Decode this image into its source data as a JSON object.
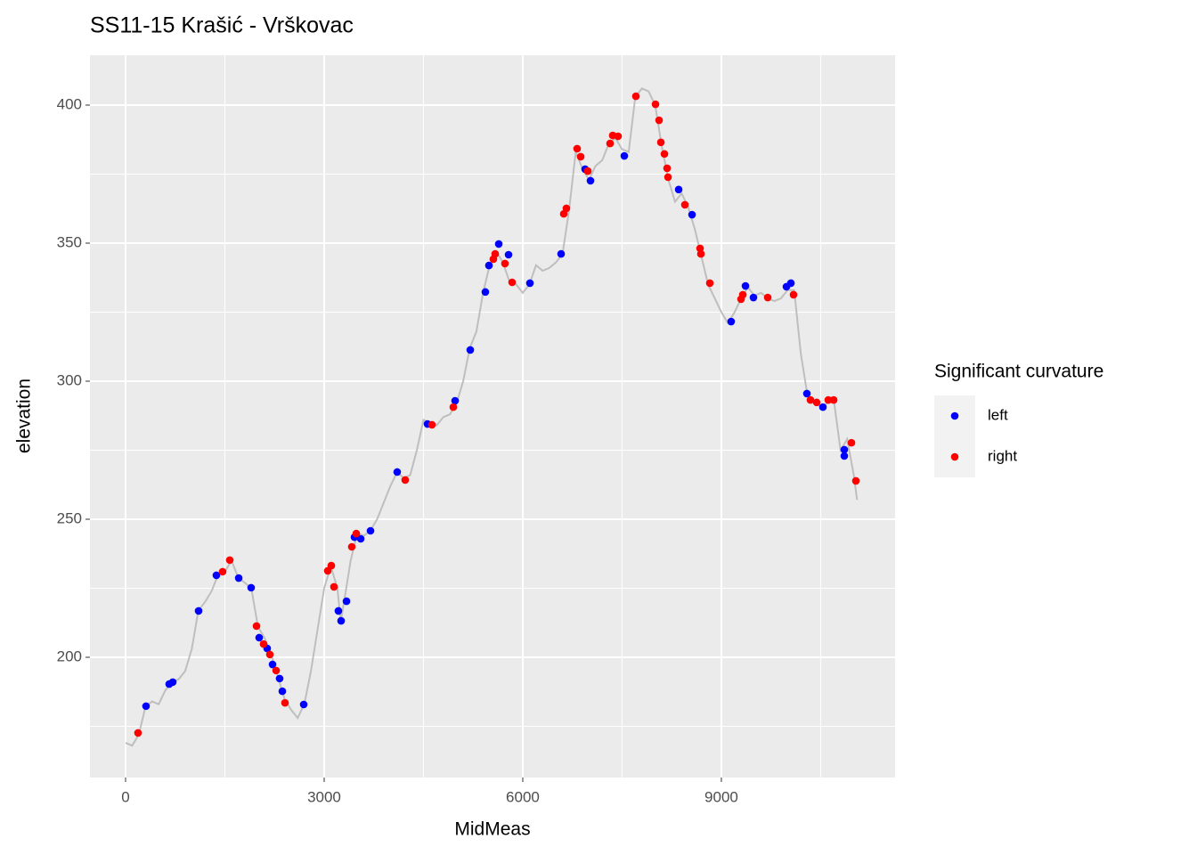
{
  "chart_data": {
    "type": "scatter",
    "title": "SS11-15 Krašić - Vrškovac",
    "x_label": "MidMeas",
    "y_label": "elevation",
    "legend_title": "Significant curvature",
    "legend_position": "right",
    "grid": true,
    "xlim": [
      -538,
      11624
    ],
    "ylim": [
      156.45,
      418.06
    ],
    "xticks": [
      0,
      3000,
      6000,
      9000
    ],
    "yticks": [
      200,
      250,
      300,
      350,
      400
    ],
    "xminor": [
      1500,
      4500,
      7500,
      10500
    ],
    "yminor": [
      175,
      225,
      275,
      325,
      375
    ],
    "profile": {
      "color": "#bebebe",
      "x": [
        0,
        100,
        200,
        300,
        400,
        500,
        600,
        700,
        800,
        900,
        1000,
        1100,
        1200,
        1300,
        1400,
        1500,
        1600,
        1700,
        1800,
        1900,
        2000,
        2100,
        2200,
        2300,
        2400,
        2500,
        2600,
        2700,
        2800,
        2900,
        3000,
        3100,
        3200,
        3250,
        3300,
        3400,
        3500,
        3600,
        3700,
        3800,
        3900,
        4000,
        4100,
        4200,
        4300,
        4400,
        4500,
        4600,
        4700,
        4800,
        4900,
        5000,
        5100,
        5200,
        5300,
        5400,
        5500,
        5600,
        5700,
        5800,
        5900,
        6000,
        6100,
        6200,
        6300,
        6400,
        6500,
        6600,
        6700,
        6800,
        6900,
        7000,
        7100,
        7200,
        7300,
        7400,
        7500,
        7600,
        7700,
        7800,
        7900,
        8000,
        8100,
        8200,
        8300,
        8400,
        8500,
        8600,
        8700,
        8800,
        8900,
        9000,
        9100,
        9200,
        9300,
        9400,
        9500,
        9600,
        9700,
        9800,
        9900,
        10000,
        10100,
        10200,
        10300,
        10400,
        10500,
        10600,
        10700,
        10800,
        10900,
        11000,
        11050
      ],
      "values": [
        169,
        168,
        172,
        182,
        184,
        183,
        188,
        191,
        192,
        195,
        203,
        217,
        220,
        224,
        230,
        231,
        235,
        229,
        227,
        225,
        211,
        207,
        201,
        193,
        185,
        181,
        178,
        183,
        195,
        210,
        225,
        233,
        225,
        213,
        220,
        235,
        245,
        244,
        246,
        250,
        256,
        262,
        267,
        265,
        266,
        275,
        286,
        285,
        284,
        287,
        288,
        292,
        300,
        312,
        318,
        332,
        342,
        347,
        343,
        336,
        335,
        332,
        335,
        342,
        340,
        341,
        343,
        346,
        362,
        383,
        377,
        373,
        378,
        380,
        386,
        388,
        384,
        383,
        403,
        406,
        405,
        400,
        385,
        373,
        365,
        368,
        363,
        355,
        345,
        335,
        330,
        325,
        321,
        325,
        330,
        334,
        331,
        332,
        330,
        329,
        330,
        333,
        333,
        310,
        295,
        292,
        291,
        292,
        293,
        275,
        279,
        266,
        257
      ]
    },
    "series": [
      {
        "name": "left",
        "color": "#0000ff",
        "x": [
          309,
          659,
          713,
          1103,
          1372,
          1709,
          1897,
          2018,
          2139,
          2220,
          2327,
          2368,
          2691,
          3215,
          3256,
          3337,
          3458,
          3552,
          3700,
          4103,
          4561,
          4978,
          5207,
          5435,
          5489,
          5637,
          5785,
          6108,
          6579,
          6942,
          7023,
          7534,
          8355,
          8557,
          9148,
          9364,
          9485,
          9983,
          10050,
          10292,
          10534,
          10857,
          10857
        ],
        "values": [
          182.3,
          190.3,
          191,
          216.8,
          229.7,
          228.7,
          225.2,
          207.1,
          203.2,
          197.4,
          192.3,
          187.7,
          182.9,
          216.8,
          213.2,
          220.3,
          243.5,
          242.9,
          245.8,
          267.1,
          284.5,
          292.9,
          311.3,
          332.3,
          341.9,
          349.7,
          345.8,
          335.5,
          346.1,
          376.8,
          372.6,
          381.6,
          369.4,
          360.3,
          321.6,
          334.5,
          330.3,
          334.2,
          335.5,
          295.5,
          290.6,
          275.2,
          272.9
        ]
      },
      {
        "name": "right",
        "color": "#ff0000",
        "x": [
          188,
          1466,
          1574,
          1978,
          2085,
          2180,
          2274,
          2408,
          3054,
          3108,
          3148,
          3417,
          3485,
          4224,
          4628,
          4951,
          5556,
          5583,
          5731,
          5839,
          6619,
          6659,
          6821,
          6875,
          6982,
          7319,
          7359,
          7440,
          7709,
          8005,
          8059,
          8086,
          8140,
          8180,
          8194,
          8449,
          8678,
          8691,
          8826,
          9297,
          9324,
          9700,
          10090,
          10346,
          10440,
          10615,
          10696,
          10965,
          11032
        ],
        "values": [
          172.6,
          231,
          235.2,
          211.3,
          204.8,
          201,
          195.2,
          183.5,
          231.3,
          233.2,
          225.5,
          240,
          244.8,
          264.2,
          284.2,
          290.6,
          344.2,
          346.1,
          342.6,
          335.8,
          360.6,
          362.6,
          384.2,
          381.3,
          376.1,
          386.1,
          389,
          388.7,
          403.2,
          400.3,
          394.5,
          386.5,
          382.3,
          377.1,
          373.9,
          363.9,
          348.1,
          346.1,
          335.5,
          329.7,
          331.3,
          330.3,
          331.3,
          293.2,
          292.3,
          293.2,
          293.2,
          277.7,
          263.9
        ]
      }
    ]
  }
}
